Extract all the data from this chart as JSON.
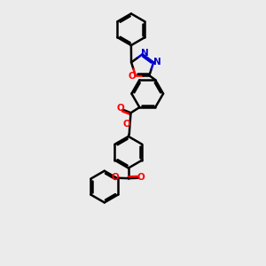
{
  "bg_color": "#ebebeb",
  "bond_color": "#000000",
  "O_color": "#ff0000",
  "N_color": "#0000cd",
  "line_width": 1.8,
  "xlim": [
    -0.5,
    3.5
  ],
  "ylim": [
    -3.8,
    3.2
  ]
}
